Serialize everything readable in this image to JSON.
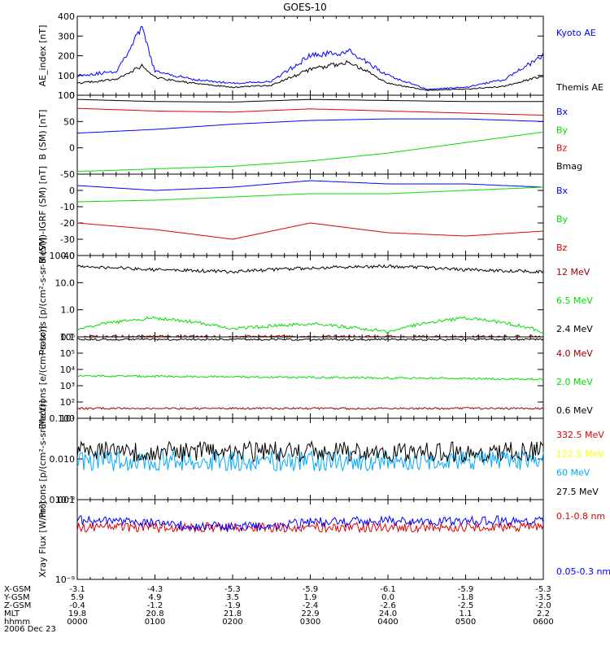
{
  "title": "GOES-10",
  "date_label": "2006 Dec 23",
  "colors": {
    "black": "#000000",
    "blue": "#0000ff",
    "red": "#dd0000",
    "green": "#00dd00",
    "darkred": "#a00000",
    "yellow": "#ffff00",
    "cyan": "#00aaff"
  },
  "orbit_table": {
    "rows": [
      {
        "label": "X-GSM",
        "values": [
          "-3.1",
          "-4.3",
          "-5.3",
          "-5.9",
          "-6.1",
          "-5.9",
          "-5.3"
        ]
      },
      {
        "label": "Y-GSM",
        "values": [
          "5.9",
          "4.9",
          "3.5",
          "1.9",
          "0.0",
          "-1.8",
          "-3.5"
        ]
      },
      {
        "label": "Z-GSM",
        "values": [
          "-0.4",
          "-1.2",
          "-1.9",
          "-2.4",
          "-2.6",
          "-2.5",
          "-2.0"
        ]
      },
      {
        "label": "MLT",
        "values": [
          "19.8",
          "20.8",
          "21.8",
          "22.9",
          "24.0",
          "1.1",
          "2.2"
        ]
      },
      {
        "label": "hhmm",
        "values": [
          "0000",
          "0100",
          "0200",
          "0300",
          "0400",
          "0500",
          "0600"
        ]
      }
    ]
  },
  "chart_data": [
    {
      "type": "line",
      "ylabel": "AE_index [nT]",
      "ylim": [
        0,
        400
      ],
      "yscale": "linear",
      "yticks": [
        0,
        100,
        200,
        300,
        400
      ],
      "ytick_labels": [
        "0",
        "100",
        "200",
        "300",
        "400"
      ],
      "series": [
        {
          "name": "Kyoto AE",
          "color": "blue",
          "hhmm": [
            "0000",
            "0030",
            "0050",
            "0100",
            "0130",
            "0200",
            "0230",
            "0300",
            "0330",
            "0400",
            "0430",
            "0500",
            "0530",
            "0600"
          ],
          "values": [
            100,
            120,
            340,
            120,
            80,
            60,
            70,
            200,
            220,
            100,
            30,
            40,
            80,
            200
          ]
        },
        {
          "name": "Themis AE",
          "color": "black",
          "hhmm": [
            "0000",
            "0030",
            "0050",
            "0100",
            "0130",
            "0200",
            "0230",
            "0300",
            "0330",
            "0400",
            "0430",
            "0500",
            "0530",
            "0600"
          ],
          "values": [
            60,
            80,
            150,
            90,
            60,
            40,
            50,
            130,
            170,
            60,
            25,
            30,
            45,
            100
          ]
        }
      ]
    },
    {
      "type": "line",
      "ylabel": "B (SM) [nT]",
      "ylim": [
        -50,
        100
      ],
      "yscale": "linear",
      "yticks": [
        -50,
        0,
        50,
        100
      ],
      "ytick_labels": [
        "-50",
        "0",
        "50",
        "100"
      ],
      "series": [
        {
          "name": "Bx",
          "color": "blue",
          "hhmm": [
            "0000",
            "0100",
            "0200",
            "0300",
            "0400",
            "0500",
            "0600"
          ],
          "values": [
            28,
            35,
            45,
            52,
            55,
            55,
            50
          ]
        },
        {
          "name": "By",
          "color": "green",
          "hhmm": [
            "0000",
            "0100",
            "0200",
            "0300",
            "0400",
            "0500",
            "0600"
          ],
          "values": [
            -45,
            -40,
            -35,
            -25,
            -10,
            10,
            30
          ]
        },
        {
          "name": "Bz",
          "color": "red",
          "hhmm": [
            "0000",
            "0100",
            "0200",
            "0300",
            "0400",
            "0500",
            "0600"
          ],
          "values": [
            75,
            70,
            68,
            74,
            70,
            66,
            62
          ]
        },
        {
          "name": "Bmag",
          "color": "black",
          "hhmm": [
            "0000",
            "0100",
            "0200",
            "0300",
            "0400",
            "0500",
            "0600"
          ],
          "values": [
            92,
            88,
            87,
            92,
            90,
            88,
            88
          ]
        }
      ]
    },
    {
      "type": "line",
      "ylabel": "B (SM)-IGRF (SM) [nT]",
      "ylim": [
        -40,
        10
      ],
      "yscale": "linear",
      "yticks": [
        -40,
        -30,
        -20,
        -10,
        0
      ],
      "ytick_labels": [
        "-40",
        "-30",
        "-20",
        "-10",
        "0"
      ],
      "series": [
        {
          "name": "Bx",
          "color": "blue",
          "hhmm": [
            "0000",
            "0100",
            "0200",
            "0300",
            "0400",
            "0500",
            "0600"
          ],
          "values": [
            3,
            0,
            2,
            6,
            4,
            4,
            2
          ]
        },
        {
          "name": "By",
          "color": "green",
          "hhmm": [
            "0000",
            "0100",
            "0200",
            "0300",
            "0400",
            "0500",
            "0600"
          ],
          "values": [
            -7,
            -6,
            -4,
            -2,
            -2,
            0,
            2
          ]
        },
        {
          "name": "Bz",
          "color": "red",
          "hhmm": [
            "0000",
            "0100",
            "0200",
            "0300",
            "0400",
            "0500",
            "0600"
          ],
          "values": [
            -20,
            -24,
            -30,
            -20,
            -26,
            -28,
            -25
          ]
        }
      ]
    },
    {
      "type": "line",
      "ylabel": "Protons [p/(cm²-s-sr-MeV)]",
      "ylim": [
        0.1,
        100
      ],
      "yscale": "log",
      "yticks": [
        0.1,
        1,
        10,
        100
      ],
      "ytick_labels": [
        "0.1",
        "1.0",
        "10.0",
        "100.0"
      ],
      "series": [
        {
          "name": "12 MeV",
          "color": "darkred",
          "hhmm": [
            "0000",
            "0600"
          ],
          "values": [
            0.1,
            0.1
          ]
        },
        {
          "name": "6.5 MeV",
          "color": "green",
          "hhmm": [
            "0000",
            "0100",
            "0200",
            "0300",
            "0400",
            "0500",
            "0600"
          ],
          "values": [
            0.2,
            0.5,
            0.2,
            0.3,
            0.15,
            0.5,
            0.15
          ]
        },
        {
          "name": "2.4 MeV",
          "color": "black",
          "hhmm": [
            "0000",
            "0100",
            "0200",
            "0300",
            "0400",
            "0500",
            "0600"
          ],
          "values": [
            40,
            30,
            25,
            35,
            40,
            30,
            25
          ]
        }
      ]
    },
    {
      "type": "line",
      "ylabel": "Electrons [e/(cm²-s-sr)]",
      "ylim": [
        10,
        1000000
      ],
      "yscale": "log",
      "yticks": [
        10,
        100,
        1000,
        10000,
        100000,
        1000000
      ],
      "ytick_labels": [
        "10¹",
        "10²",
        "10³",
        "10⁴",
        "10⁵",
        "10⁶"
      ],
      "series": [
        {
          "name": "4.0 MeV",
          "color": "darkred",
          "hhmm": [
            "0000",
            "0600"
          ],
          "values": [
            40,
            40
          ]
        },
        {
          "name": "2.0 MeV",
          "color": "green",
          "hhmm": [
            "0000",
            "0600"
          ],
          "values": [
            4000,
            2500
          ]
        },
        {
          "name": "0.6 MeV",
          "color": "black",
          "hhmm": [
            "0000",
            "0600"
          ],
          "values": [
            700000,
            700000
          ]
        }
      ]
    },
    {
      "type": "line",
      "ylabel": "Protons [p/(cm²-s-sr-MeV)]",
      "ylim": [
        0.001,
        0.1
      ],
      "yscale": "log",
      "yticks": [
        0.001,
        0.01,
        0.1
      ],
      "ytick_labels": [
        "0.001",
        "0.010",
        "0.100"
      ],
      "series": [
        {
          "name": "332.5 MeV",
          "color": "red",
          "hhmm": [],
          "values": []
        },
        {
          "name": "122.5 MeV",
          "color": "yellow",
          "hhmm": [],
          "values": []
        },
        {
          "name": "60 MeV",
          "color": "cyan",
          "hhmm": [
            "0000",
            "0600"
          ],
          "values": [
            0.009,
            0.009
          ]
        },
        {
          "name": "27.5 MeV",
          "color": "black",
          "hhmm": [
            "0000",
            "0600"
          ],
          "values": [
            0.015,
            0.015
          ]
        }
      ]
    },
    {
      "type": "line",
      "ylabel": "Xray Flux [W/m²]",
      "ylim": [
        1e-09,
        1e-08
      ],
      "yscale": "log",
      "yticks": [
        1e-09,
        1e-08
      ],
      "ytick_labels": [
        "10⁻⁹",
        "10⁻⁸"
      ],
      "series": [
        {
          "name": "0.1-0.8 nm",
          "color": "red",
          "hhmm": [
            "0000",
            "0600"
          ],
          "values": [
            4.5e-09,
            4.5e-09
          ]
        },
        {
          "name": "0.05-0.3 nm",
          "color": "blue",
          "hhmm": [
            "0000",
            "0100",
            "0200",
            "0230",
            "0300",
            "0400",
            "0500",
            "0600"
          ],
          "values": [
            5.5e-09,
            5e-09,
            4.5e-09,
            4.6e-09,
            5.2e-09,
            5.4e-09,
            5.4e-09,
            5.6e-09
          ]
        }
      ]
    }
  ]
}
